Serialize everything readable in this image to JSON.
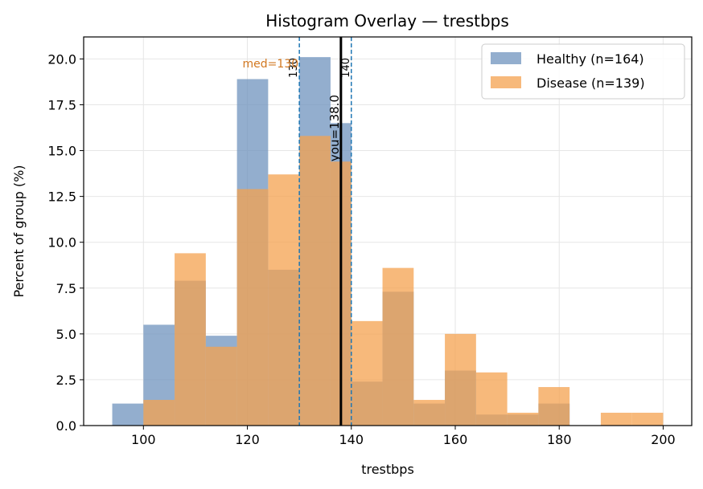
{
  "chart_data": {
    "type": "bar",
    "title": "Histogram Overlay — trestbps",
    "xlabel": "trestbps",
    "ylabel": "Percent of group (%)",
    "xlim": [
      88.5,
      205.5
    ],
    "ylim": [
      0,
      21.2
    ],
    "xticks": [
      100,
      120,
      140,
      160,
      180,
      200
    ],
    "yticks": [
      0.0,
      2.5,
      5.0,
      7.5,
      10.0,
      12.5,
      15.0,
      17.5,
      20.0
    ],
    "grid": true,
    "legend_position": "top-right",
    "bin_edges": [
      94.0,
      100.0,
      106.0,
      112.0,
      118.0,
      124.0,
      130.0,
      136.0,
      140.0,
      146.0,
      152.0,
      158.0,
      164.0,
      170.0,
      176.0,
      182.0,
      188.0,
      194.0,
      200.0
    ],
    "series": [
      {
        "name": "Healthy (n=164)",
        "color": "#6f93bd",
        "values": [
          1.2,
          5.5,
          7.9,
          4.9,
          18.9,
          8.5,
          20.1,
          16.5,
          2.4,
          7.3,
          1.2,
          3.0,
          0.6,
          0.6,
          1.2,
          0.0,
          0.0,
          0.0
        ]
      },
      {
        "name": "Disease (n=139)",
        "color": "#f4a14f",
        "values": [
          0.0,
          1.4,
          9.4,
          4.3,
          12.9,
          13.7,
          15.8,
          14.4,
          5.7,
          8.6,
          1.4,
          5.0,
          2.9,
          0.7,
          2.1,
          0.0,
          0.7,
          0.7
        ]
      }
    ],
    "reference_lines": [
      {
        "x": 130,
        "label": "130",
        "style": "dashed",
        "color": "#1f77b4"
      },
      {
        "x": 140,
        "label": "140",
        "style": "dashed",
        "color": "#1f77b4"
      },
      {
        "x": 138.0,
        "label": "you=138.0",
        "style": "solid",
        "color": "#000000"
      }
    ],
    "annotations": [
      {
        "text": "med=130",
        "x": 130,
        "color": "#d2771f"
      }
    ]
  }
}
